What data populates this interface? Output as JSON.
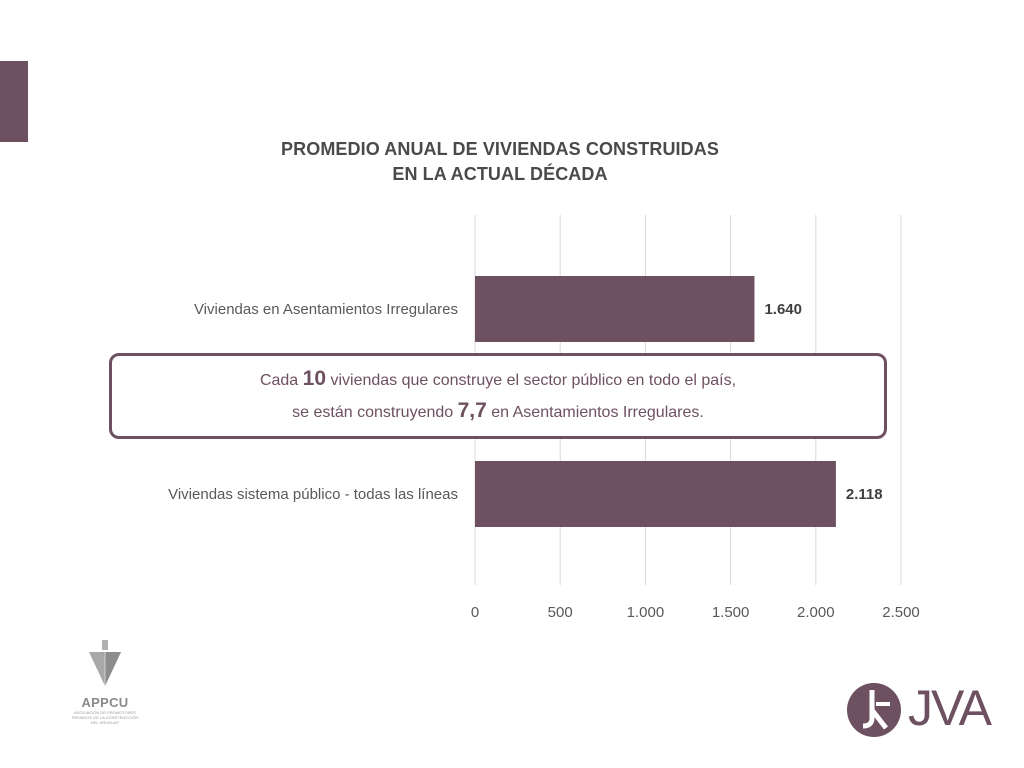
{
  "colors": {
    "accent": "#6e5160",
    "bar": "#6e5160",
    "grid": "#d9d9d9",
    "text": "#595959"
  },
  "chart_data": {
    "type": "bar",
    "orientation": "horizontal",
    "title_lines": [
      "PROMEDIO ANUAL DE VIVIENDAS CONSTRUIDAS",
      "EN LA ACTUAL DÉCADA"
    ],
    "categories": [
      "Viviendas en Asentamientos Irregulares",
      "Viviendas sistema público - todas las líneas"
    ],
    "values": [
      1640,
      2118
    ],
    "value_labels": [
      "1.640",
      "2.118"
    ],
    "xlim": [
      0,
      2500
    ],
    "xticks": [
      0,
      500,
      1000,
      1500,
      2000,
      2500
    ],
    "xtick_labels": [
      "0",
      "500",
      "1.000",
      "1.500",
      "2.000",
      "2.500"
    ],
    "grid": true
  },
  "callout": {
    "line1_pre": "Cada ",
    "line1_big": "10",
    "line1_post": " viviendas que construye el sector público en todo el país,",
    "line2_pre": "se están construyendo ",
    "line2_big": "7,7",
    "line2_post": " en Asentamientos Irregulares."
  },
  "logos": {
    "appcu_name": "APPCU",
    "appcu_sub": "ASOCIACIÓN DE PROMOTORES PRIVADOS DE LA CONSTRUCCIÓN DEL URUGUAY",
    "jva_name": "JVA"
  }
}
